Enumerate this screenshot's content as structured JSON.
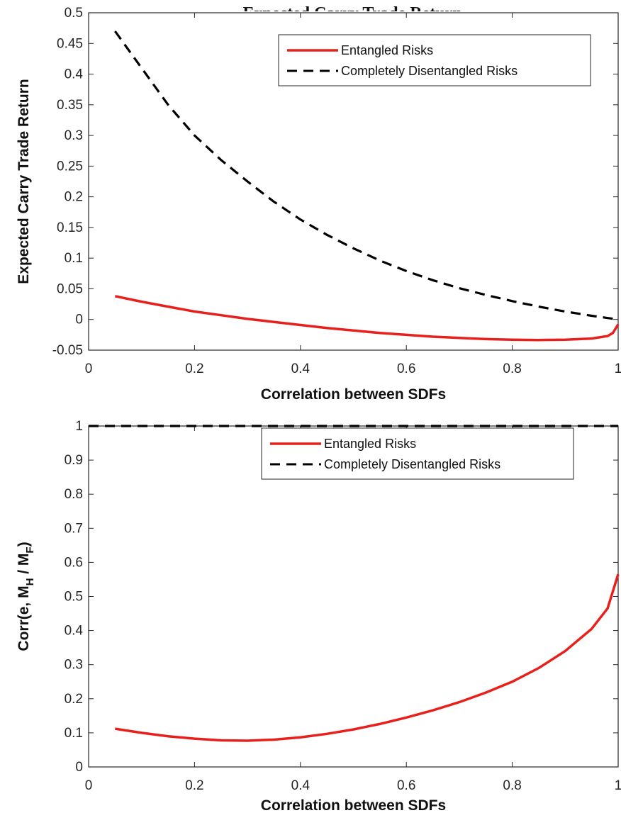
{
  "figure": {
    "top_title": "Expected Carry Trade Return"
  },
  "chart_data": [
    {
      "type": "line",
      "title": "",
      "xlabel": "Correlation between SDFs",
      "ylabel": "Expected Carry Trade Return",
      "xlim": [
        0,
        1
      ],
      "ylim": [
        -0.05,
        0.5
      ],
      "xticks": [
        0,
        0.2,
        0.4,
        0.6,
        0.8,
        1
      ],
      "xtick_labels": [
        "0",
        "0.2",
        "0.4",
        "0.6",
        "0.8",
        "1"
      ],
      "yticks": [
        -0.05,
        0,
        0.05,
        0.1,
        0.15,
        0.2,
        0.25,
        0.3,
        0.35,
        0.4,
        0.45,
        0.5
      ],
      "ytick_labels": [
        "-0.05",
        "0",
        "0.05",
        "0.1",
        "0.15",
        "0.2",
        "0.25",
        "0.3",
        "0.35",
        "0.4",
        "0.45",
        "0.5"
      ],
      "grid": false,
      "legend": "top-right",
      "series": [
        {
          "name": "Entangled Risks",
          "color": "#e8201c",
          "style": "solid",
          "x": [
            0.05,
            0.1,
            0.15,
            0.2,
            0.25,
            0.3,
            0.35,
            0.4,
            0.45,
            0.5,
            0.55,
            0.6,
            0.65,
            0.7,
            0.75,
            0.8,
            0.85,
            0.9,
            0.95,
            0.98,
            0.99,
            1.0
          ],
          "y": [
            0.038,
            0.029,
            0.021,
            0.013,
            0.007,
            0.001,
            -0.004,
            -0.009,
            -0.014,
            -0.018,
            -0.022,
            -0.025,
            -0.028,
            -0.03,
            -0.032,
            -0.033,
            -0.0335,
            -0.033,
            -0.031,
            -0.027,
            -0.022,
            -0.008
          ]
        },
        {
          "name": "Completely Disentangled Risks",
          "color": "#000000",
          "style": "dashed",
          "x": [
            0.05,
            0.1,
            0.15,
            0.2,
            0.25,
            0.3,
            0.35,
            0.4,
            0.45,
            0.5,
            0.55,
            0.6,
            0.65,
            0.7,
            0.75,
            0.8,
            0.85,
            0.9,
            0.95,
            1.0
          ],
          "y": [
            0.47,
            0.41,
            0.35,
            0.3,
            0.26,
            0.225,
            0.192,
            0.163,
            0.138,
            0.116,
            0.096,
            0.079,
            0.064,
            0.051,
            0.04,
            0.03,
            0.021,
            0.013,
            0.006,
            0.0
          ]
        }
      ]
    },
    {
      "type": "line",
      "title": "",
      "xlabel": "Correlation between SDFs",
      "ylabel": "Corr(e, M_H / M_F)",
      "ylabel_parts": {
        "main": "Corr(e, M",
        "sub1": "H",
        "mid": " / M",
        "sub2": "F",
        "end": ")"
      },
      "xlim": [
        0,
        1
      ],
      "ylim": [
        0,
        1
      ],
      "xticks": [
        0,
        0.2,
        0.4,
        0.6,
        0.8,
        1
      ],
      "xtick_labels": [
        "0",
        "0.2",
        "0.4",
        "0.6",
        "0.8",
        "1"
      ],
      "yticks": [
        0,
        0.1,
        0.2,
        0.3,
        0.4,
        0.5,
        0.6,
        0.7,
        0.8,
        0.9,
        1
      ],
      "ytick_labels": [
        "0",
        "0.1",
        "0.2",
        "0.3",
        "0.4",
        "0.5",
        "0.6",
        "0.7",
        "0.8",
        "0.9",
        "1"
      ],
      "grid": false,
      "legend": "top-right",
      "series": [
        {
          "name": "Entangled Risks",
          "color": "#e8201c",
          "style": "solid",
          "x": [
            0.05,
            0.1,
            0.15,
            0.2,
            0.25,
            0.3,
            0.35,
            0.4,
            0.45,
            0.5,
            0.55,
            0.6,
            0.65,
            0.7,
            0.75,
            0.8,
            0.85,
            0.9,
            0.95,
            0.98,
            1.0
          ],
          "y": [
            0.112,
            0.1,
            0.09,
            0.083,
            0.078,
            0.077,
            0.08,
            0.087,
            0.097,
            0.11,
            0.126,
            0.145,
            0.166,
            0.19,
            0.218,
            0.25,
            0.29,
            0.34,
            0.405,
            0.465,
            0.565
          ]
        },
        {
          "name": "Completely Disentangled Risks",
          "color": "#000000",
          "style": "dashed",
          "x": [
            0.0,
            1.0
          ],
          "y": [
            1.0,
            1.0
          ]
        }
      ]
    }
  ]
}
